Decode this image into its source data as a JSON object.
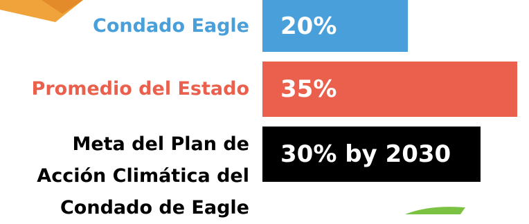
{
  "chart_data": {
    "type": "bar",
    "orientation": "horizontal",
    "categories": [
      "Condado Eagle",
      "Promedio del Estado",
      "Meta del Plan de\nAcción Climática del\nCondado de Eagle"
    ],
    "values": [
      20,
      35,
      30
    ],
    "value_labels": [
      "20%",
      "35%",
      "30% by 2030"
    ],
    "colors": [
      "#489fd9",
      "#ea604d",
      "#000000"
    ]
  }
}
